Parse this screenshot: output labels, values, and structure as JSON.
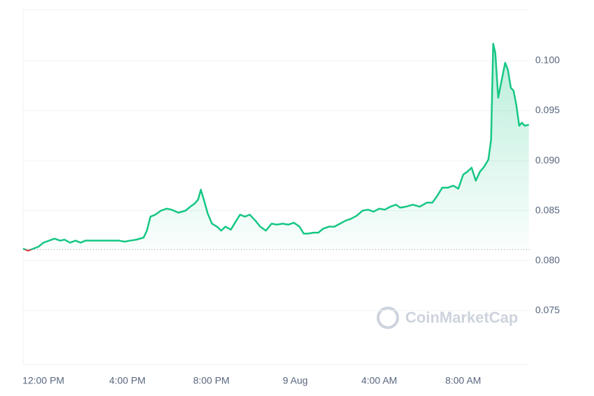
{
  "chart_data": {
    "type": "line",
    "watermark": "CoinMarketCap",
    "color": "#16c784",
    "down_color": "#ea3943",
    "baseline": 0.0811,
    "grid": true,
    "x": [
      11.03,
      11.27,
      11.53,
      11.77,
      12.0,
      12.27,
      12.53,
      12.8,
      13.0,
      13.27,
      13.53,
      13.77,
      14.0,
      14.27,
      14.6,
      14.93,
      15.27,
      15.6,
      15.87,
      16.13,
      16.43,
      16.77,
      16.93,
      17.1,
      17.33,
      17.6,
      17.87,
      18.1,
      18.43,
      18.77,
      19.0,
      19.2,
      19.37,
      19.5,
      19.67,
      19.83,
      20.03,
      20.27,
      20.47,
      20.67,
      20.93,
      21.13,
      21.37,
      21.6,
      21.83,
      22.1,
      22.33,
      22.6,
      22.87,
      23.13,
      23.4,
      23.67,
      23.93,
      24.2,
      24.4,
      24.6,
      24.87,
      25.1,
      25.33,
      25.6,
      25.87,
      26.13,
      26.4,
      26.67,
      26.93,
      27.2,
      27.47,
      27.73,
      28.0,
      28.27,
      28.53,
      28.8,
      29.0,
      29.27,
      29.6,
      29.93,
      30.27,
      30.53,
      30.77,
      31.0,
      31.27,
      31.53,
      31.77,
      32.0,
      32.2,
      32.4,
      32.6,
      32.8,
      33.0,
      33.2,
      33.33,
      33.43,
      33.53,
      33.67,
      33.8,
      34.0,
      34.13,
      34.27,
      34.4,
      34.53,
      34.67,
      34.8,
      34.93,
      35.13
    ],
    "values": [
      0.0812,
      0.081,
      0.0812,
      0.0814,
      0.0818,
      0.082,
      0.0822,
      0.082,
      0.0821,
      0.0818,
      0.082,
      0.0818,
      0.082,
      0.082,
      0.082,
      0.082,
      0.082,
      0.082,
      0.0819,
      0.082,
      0.0821,
      0.0823,
      0.083,
      0.0844,
      0.0846,
      0.085,
      0.0852,
      0.0851,
      0.0848,
      0.085,
      0.0854,
      0.0857,
      0.0861,
      0.0871,
      0.0859,
      0.0847,
      0.0837,
      0.0834,
      0.083,
      0.0834,
      0.0831,
      0.0838,
      0.0846,
      0.0844,
      0.0846,
      0.084,
      0.0834,
      0.083,
      0.0837,
      0.0836,
      0.0837,
      0.0836,
      0.0838,
      0.0834,
      0.0827,
      0.0827,
      0.0828,
      0.0828,
      0.0832,
      0.0834,
      0.0834,
      0.0837,
      0.084,
      0.0842,
      0.0845,
      0.085,
      0.0851,
      0.0849,
      0.0852,
      0.0851,
      0.0854,
      0.0856,
      0.0853,
      0.0854,
      0.0856,
      0.0854,
      0.0858,
      0.0858,
      0.0865,
      0.0873,
      0.0873,
      0.0875,
      0.0872,
      0.0886,
      0.0889,
      0.0893,
      0.088,
      0.0889,
      0.0894,
      0.0901,
      0.0921,
      0.1017,
      0.1008,
      0.0963,
      0.0977,
      0.0998,
      0.0991,
      0.0973,
      0.097,
      0.0956,
      0.0935,
      0.0938,
      0.0935,
      0.0936
    ],
    "xlim": [
      11.03,
      35.17
    ],
    "xticks": [
      {
        "value": 12,
        "label": "12:00 PM"
      },
      {
        "value": 16,
        "label": "4:00 PM"
      },
      {
        "value": 20,
        "label": "8:00 PM"
      },
      {
        "value": 24,
        "label": "9 Aug"
      },
      {
        "value": 28,
        "label": "4:00 AM"
      },
      {
        "value": 32,
        "label": "8:00 AM"
      }
    ],
    "ylim": [
      0.0696,
      0.1051
    ],
    "yticks": [
      {
        "value": 0.075,
        "label": "0.075"
      },
      {
        "value": 0.08,
        "label": "0.080"
      },
      {
        "value": 0.085,
        "label": "0.085"
      },
      {
        "value": 0.09,
        "label": "0.090"
      },
      {
        "value": 0.095,
        "label": "0.095"
      },
      {
        "value": 0.1,
        "label": "0.100"
      }
    ]
  }
}
